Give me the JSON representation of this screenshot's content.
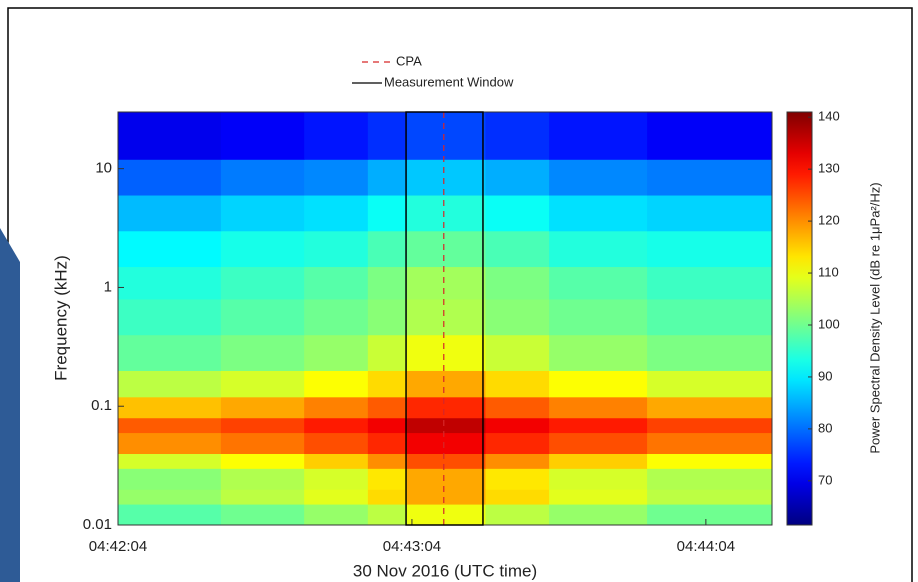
{
  "chart_data": {
    "type": "heatmap",
    "colormap": "jet",
    "xlabel": "30 Nov 2016 (UTC time)",
    "ylabel": "Frequency (kHz)",
    "colorbar_label": "Power Spectral Density Level (dB re 1μPa²/Hz)",
    "xlim": [
      16924,
      17057.5
    ],
    "xticks": [
      {
        "value": 16924,
        "label": "04:42:04"
      },
      {
        "value": 16984,
        "label": "04:43:04"
      },
      {
        "value": 17044,
        "label": "04:44:04"
      }
    ],
    "ylim": [
      0.01,
      30
    ],
    "yscale": "log",
    "yticks": [
      0.01,
      0.1,
      1,
      10
    ],
    "clim": [
      61.5,
      141
    ],
    "cticks": [
      70,
      80,
      90,
      100,
      110,
      120,
      130,
      140
    ],
    "x_edges": [
      16924,
      16945,
      16962,
      16975,
      16983,
      16999,
      17012,
      17032,
      17057.5
    ],
    "y_edges": [
      0.01,
      0.015,
      0.02,
      0.03,
      0.04,
      0.06,
      0.08,
      0.12,
      0.2,
      0.4,
      0.8,
      1.5,
      3,
      6,
      12,
      30
    ],
    "values": [
      [
        98,
        100,
        103,
        106,
        110,
        106,
        103,
        100
      ],
      [
        103,
        106,
        109,
        114,
        118,
        114,
        109,
        106
      ],
      [
        102,
        105,
        108,
        113,
        118,
        113,
        108,
        105
      ],
      [
        108,
        111,
        115,
        120,
        125,
        120,
        115,
        111
      ],
      [
        120,
        122,
        125,
        128,
        132,
        128,
        125,
        122
      ],
      [
        124,
        126,
        129,
        132,
        136,
        132,
        129,
        126
      ],
      [
        116,
        118,
        121,
        124,
        128,
        124,
        121,
        118
      ],
      [
        106,
        108,
        111,
        114,
        118,
        114,
        111,
        108
      ],
      [
        99,
        101,
        103,
        107,
        110,
        107,
        103,
        101
      ],
      [
        96,
        98,
        100,
        102,
        105,
        102,
        100,
        98
      ],
      [
        94,
        96,
        98,
        101,
        104,
        101,
        98,
        96
      ],
      [
        91,
        93,
        94,
        97,
        99,
        97,
        94,
        93
      ],
      [
        86,
        88,
        89,
        92,
        94,
        92,
        89,
        88
      ],
      [
        79,
        81,
        82,
        85,
        87,
        85,
        82,
        81
      ],
      [
        70,
        71,
        73,
        75,
        77,
        75,
        73,
        71
      ]
    ],
    "cpa": {
      "name": "CPA",
      "x": 16990.5,
      "color": "#d62728"
    },
    "window": {
      "name": "Measurement Window",
      "x": [
        16982.8,
        16998.5
      ],
      "color": "#000000"
    }
  }
}
